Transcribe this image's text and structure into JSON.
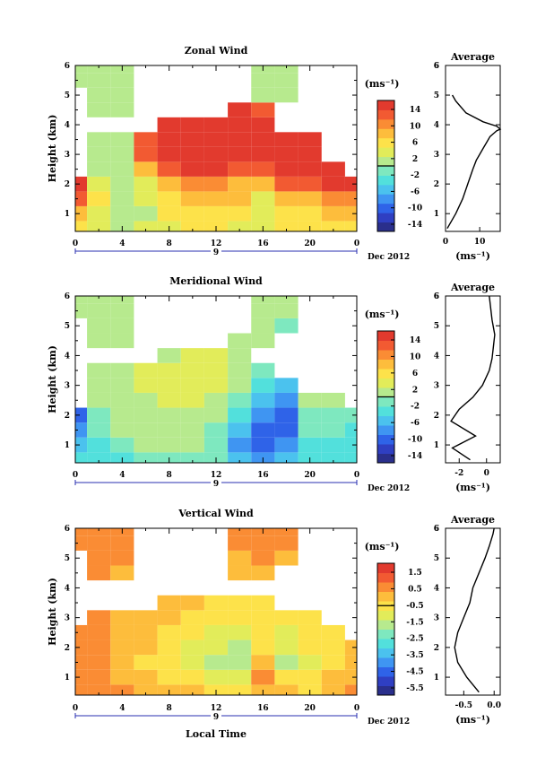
{
  "panels": [
    {
      "title": "Zonal Wind",
      "ylabel": "Height (km)",
      "yticks": [
        "1",
        "2",
        "3",
        "4",
        "5",
        "6"
      ],
      "xticks": [
        "0",
        "4",
        "8",
        "12",
        "16",
        "20",
        "0"
      ],
      "day_label": "9",
      "month_label": "Dec 2012",
      "colorbar_unit": "(ms⁻¹)",
      "colorbar_ticks": [
        "14",
        "10",
        "6",
        "2",
        "-2",
        "-6",
        "-10",
        "-14"
      ],
      "avg_title": "Average",
      "avg_xticks": [
        "0",
        "10"
      ],
      "avg_xlabel": "(ms⁻¹)"
    },
    {
      "title": "Meridional Wind",
      "ylabel": "Height (km)",
      "yticks": [
        "1",
        "2",
        "3",
        "4",
        "5",
        "6"
      ],
      "xticks": [
        "0",
        "4",
        "8",
        "12",
        "16",
        "20",
        "0"
      ],
      "day_label": "9",
      "month_label": "Dec 2012",
      "colorbar_unit": "(ms⁻¹)",
      "colorbar_ticks": [
        "14",
        "10",
        "6",
        "2",
        "-2",
        "-6",
        "-10",
        "-14"
      ],
      "avg_title": "Average",
      "avg_xticks": [
        "-2",
        "0"
      ],
      "avg_xlabel": "(ms⁻¹)"
    },
    {
      "title": "Vertical Wind",
      "ylabel": "Height (km)",
      "yticks": [
        "1",
        "2",
        "3",
        "4",
        "5",
        "6"
      ],
      "xticks": [
        "0",
        "4",
        "8",
        "12",
        "16",
        "20",
        "0"
      ],
      "day_label": "9",
      "month_label": "Dec 2012",
      "colorbar_unit": "(ms⁻¹)",
      "colorbar_ticks": [
        "1.5",
        "0.5",
        "-0.5",
        "-1.5",
        "-2.5",
        "-3.5",
        "-4.5",
        "-5.5"
      ],
      "avg_title": "Average",
      "avg_xticks": [
        "-0.5",
        "0.0"
      ],
      "avg_xlabel": "(ms⁻¹)",
      "xlabel": "Local Time"
    }
  ],
  "colormap": [
    "#2a2f8c",
    "#2f3fc2",
    "#2f63e8",
    "#3f95f2",
    "#4bc2ee",
    "#52e0dc",
    "#7ee8bf",
    "#b7ea8e",
    "#e2ec5a",
    "#fde24a",
    "#fdbd3c",
    "#fa8c34",
    "#f25a32",
    "#e23a2e"
  ],
  "chart_data": [
    {
      "type": "heatmap",
      "title": "Zonal Wind",
      "ylabel": "Height (km)",
      "xlim": [
        0,
        24
      ],
      "ylim": [
        0.4,
        6
      ],
      "clim": [
        -16,
        16
      ],
      "x": [
        0,
        2,
        4,
        6,
        8,
        10,
        12,
        14,
        16,
        18,
        20,
        22,
        24
      ],
      "y": [
        0.5,
        1,
        1.5,
        2,
        2.5,
        3,
        3.5,
        4,
        4.5,
        5,
        5.5,
        6
      ],
      "z": [
        [
          6,
          4,
          2,
          3,
          4,
          5,
          5,
          4,
          3,
          5,
          5,
          6,
          6
        ],
        [
          8,
          4,
          1,
          2,
          5,
          6,
          6,
          5,
          3,
          6,
          6,
          8,
          8
        ],
        [
          12,
          5,
          1,
          3,
          6,
          8,
          8,
          7,
          4,
          8,
          9,
          10,
          10
        ],
        [
          14,
          4,
          2,
          4,
          8,
          10,
          10,
          9,
          8,
          12,
          12,
          14,
          14
        ],
        [
          null,
          2,
          0,
          8,
          12,
          14,
          14,
          13,
          12,
          14,
          14,
          16,
          null
        ],
        [
          null,
          1,
          0,
          12,
          14,
          16,
          16,
          15,
          14,
          15,
          16,
          null,
          null
        ],
        [
          null,
          0,
          0,
          12,
          15,
          16,
          16,
          16,
          16,
          16,
          16,
          null,
          null
        ],
        [
          null,
          null,
          null,
          null,
          14,
          16,
          16,
          16,
          16,
          null,
          null,
          null,
          null
        ],
        [
          null,
          0,
          0,
          null,
          null,
          null,
          null,
          14,
          12,
          null,
          null,
          null,
          null
        ],
        [
          null,
          0,
          0,
          null,
          null,
          null,
          null,
          null,
          1,
          0,
          null,
          null,
          null
        ],
        [
          0,
          0,
          0,
          null,
          null,
          null,
          null,
          null,
          0,
          0,
          null,
          null,
          null
        ],
        [
          0,
          0,
          0,
          null,
          null,
          null,
          null,
          null,
          0,
          0,
          null,
          null,
          null
        ]
      ],
      "average": {
        "xlim": [
          0,
          16
        ],
        "x": [
          0.5,
          3,
          5,
          6.5,
          8,
          9,
          10,
          11,
          12,
          13,
          14,
          15,
          16,
          15,
          11,
          6,
          3,
          2
        ],
        "y": [
          0.5,
          1.0,
          1.5,
          2.0,
          2.5,
          2.8,
          3.0,
          3.2,
          3.4,
          3.6,
          3.7,
          3.8,
          3.85,
          3.95,
          4.1,
          4.4,
          4.8,
          5.0
        ]
      }
    },
    {
      "type": "heatmap",
      "title": "Meridional Wind",
      "ylabel": "Height (km)",
      "xlim": [
        0,
        24
      ],
      "ylim": [
        0.4,
        6
      ],
      "clim": [
        -16,
        16
      ],
      "x": [
        0,
        2,
        4,
        6,
        8,
        10,
        12,
        14,
        16,
        18,
        20,
        22,
        24
      ],
      "y": [
        0.5,
        1,
        1.5,
        2,
        2.5,
        3,
        3.5,
        4,
        4.5,
        5,
        5.5,
        6
      ],
      "z": [
        [
          -4,
          -4,
          -3,
          -2,
          -1,
          -1,
          -2,
          -6,
          -8,
          -6,
          -4,
          -3,
          -3
        ],
        [
          -6,
          -3,
          -1,
          0,
          1,
          0,
          -2,
          -8,
          -10,
          -8,
          -3,
          -4,
          -4
        ],
        [
          -8,
          -2,
          0,
          1,
          2,
          1,
          -1,
          -6,
          -10,
          -10,
          -2,
          -2,
          -3
        ],
        [
          -10,
          -1,
          0,
          1,
          2,
          2,
          0,
          -4,
          -8,
          -10,
          -1,
          -1,
          -2
        ],
        [
          null,
          0,
          0,
          2,
          3,
          3,
          2,
          -2,
          -6,
          -8,
          0,
          0,
          null
        ],
        [
          null,
          0,
          1,
          3,
          4,
          4,
          3,
          0,
          -4,
          -6,
          null,
          null,
          null
        ],
        [
          null,
          0,
          1,
          3,
          4,
          4,
          4,
          2,
          -2,
          null,
          null,
          null,
          null
        ],
        [
          null,
          null,
          null,
          null,
          2,
          3,
          3,
          2,
          null,
          null,
          null,
          null,
          null
        ],
        [
          null,
          0,
          0,
          null,
          null,
          null,
          null,
          2,
          0,
          null,
          null,
          null,
          null
        ],
        [
          null,
          0,
          0,
          null,
          null,
          null,
          null,
          null,
          0,
          -2,
          null,
          null,
          null
        ],
        [
          0,
          0,
          0,
          null,
          null,
          null,
          null,
          null,
          0,
          0,
          null,
          null,
          null
        ],
        [
          0,
          0,
          0,
          null,
          null,
          null,
          null,
          null,
          0,
          0,
          null,
          null,
          null
        ]
      ],
      "average": {
        "xlim": [
          -3,
          1
        ],
        "x": [
          -1.2,
          -2.5,
          -0.8,
          -2.6,
          -2.0,
          -1.0,
          -0.3,
          0.2,
          0.4,
          0.5,
          0.6,
          0.4,
          0.2
        ],
        "y": [
          0.5,
          0.9,
          1.3,
          1.8,
          2.2,
          2.6,
          3.0,
          3.5,
          3.9,
          4.3,
          4.7,
          5.2,
          6.0
        ]
      }
    },
    {
      "type": "heatmap",
      "title": "Vertical Wind",
      "ylabel": "Height (km)",
      "xlabel": "Local Time",
      "xlim": [
        0,
        24
      ],
      "ylim": [
        0.4,
        6
      ],
      "clim": [
        -6,
        2
      ],
      "x": [
        0,
        2,
        4,
        6,
        8,
        10,
        12,
        14,
        16,
        18,
        20,
        22,
        24
      ],
      "y": [
        0.5,
        1,
        1.5,
        2,
        2.5,
        3,
        3.5,
        4,
        4.5,
        5,
        5.5,
        6
      ],
      "z": [
        [
          0.5,
          0.5,
          0.3,
          0.2,
          0.0,
          -0.2,
          -0.3,
          -0.5,
          0.2,
          -0.2,
          -0.3,
          0.2,
          0.3
        ],
        [
          0.4,
          0.5,
          0.2,
          -0.2,
          -0.5,
          -0.8,
          -1.0,
          -1.2,
          0.3,
          -0.8,
          -0.5,
          -0.2,
          0.2
        ],
        [
          0.3,
          0.4,
          0.1,
          -0.3,
          -0.8,
          -1.2,
          -1.5,
          -1.8,
          -0.2,
          -1.5,
          -1.0,
          -0.5,
          0.0
        ],
        [
          0.4,
          0.3,
          0.0,
          -0.2,
          -0.6,
          -1.0,
          -1.4,
          -1.6,
          -0.5,
          -1.2,
          -0.8,
          -0.4,
          -0.2
        ],
        [
          0.5,
          0.3,
          0.1,
          0.0,
          -0.3,
          -0.6,
          -1.0,
          -1.2,
          -0.8,
          -1.0,
          -0.6,
          -0.3,
          null
        ],
        [
          null,
          0.4,
          0.2,
          0.1,
          -0.1,
          -0.3,
          -0.6,
          -0.8,
          -0.6,
          -0.7,
          -0.4,
          null,
          null
        ],
        [
          null,
          null,
          null,
          null,
          0.0,
          -0.2,
          -0.4,
          -0.5,
          -0.4,
          null,
          null,
          null,
          null
        ],
        [
          null,
          null,
          null,
          null,
          null,
          null,
          null,
          null,
          null,
          null,
          null,
          null,
          null
        ],
        [
          null,
          0.3,
          0.2,
          null,
          null,
          null,
          null,
          0.1,
          0.1,
          null,
          null,
          null,
          null
        ],
        [
          null,
          0.4,
          0.3,
          null,
          null,
          null,
          null,
          0.2,
          0.3,
          0.2,
          null,
          null,
          null
        ],
        [
          0.5,
          0.4,
          0.3,
          null,
          null,
          null,
          null,
          0.3,
          0.4,
          0.4,
          null,
          null,
          null
        ],
        [
          0.5,
          0.5,
          0.4,
          null,
          null,
          null,
          null,
          0.4,
          0.5,
          0.4,
          null,
          null,
          null
        ]
      ],
      "average": {
        "xlim": [
          -0.8,
          0.1
        ],
        "x": [
          -0.25,
          -0.45,
          -0.6,
          -0.65,
          -0.6,
          -0.5,
          -0.4,
          -0.35,
          -0.25,
          -0.15,
          -0.08,
          -0.02,
          0.0
        ],
        "y": [
          0.5,
          1.0,
          1.5,
          2.0,
          2.5,
          3.0,
          3.5,
          4.0,
          4.5,
          5.0,
          5.4,
          5.8,
          6.0
        ]
      }
    }
  ]
}
